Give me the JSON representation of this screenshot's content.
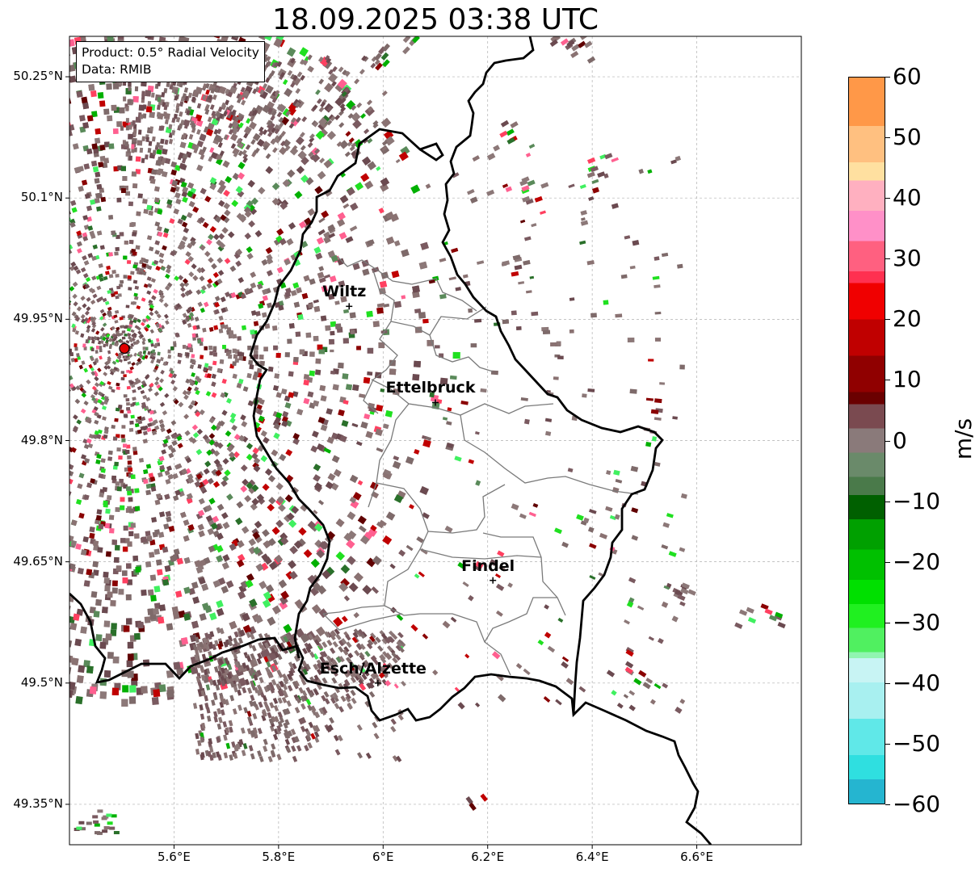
{
  "title": "18.09.2025 03:38 UTC",
  "info": {
    "product": "Product: 0.5° Radial Velocity",
    "data": "Data: RMIB"
  },
  "axes": {
    "lon_range": [
      5.4,
      6.8
    ],
    "lat_range": [
      49.3,
      50.3
    ],
    "xticks": [
      {
        "value": 5.6,
        "label": "5.6°E"
      },
      {
        "value": 5.8,
        "label": "5.8°E"
      },
      {
        "value": 6.0,
        "label": "6°E"
      },
      {
        "value": 6.2,
        "label": "6.2°E"
      },
      {
        "value": 6.4,
        "label": "6.4°E"
      },
      {
        "value": 6.6,
        "label": "6.6°E"
      }
    ],
    "yticks": [
      {
        "value": 50.25,
        "label": "50.25°N"
      },
      {
        "value": 50.1,
        "label": "50.1°N"
      },
      {
        "value": 49.95,
        "label": "49.95°N"
      },
      {
        "value": 49.8,
        "label": "49.8°N"
      },
      {
        "value": 49.65,
        "label": "49.65°N"
      },
      {
        "value": 49.5,
        "label": "49.5°N"
      },
      {
        "value": 49.35,
        "label": "49.35°N"
      }
    ],
    "grid": true
  },
  "cities": [
    {
      "name": "Wiltz",
      "lon": 5.935,
      "lat": 49.966
    },
    {
      "name": "Ettelbruck",
      "lon": 6.1,
      "lat": 49.847
    },
    {
      "name": "Findel",
      "lon": 6.21,
      "lat": 49.627
    },
    {
      "name": "Esch/Alzette",
      "lon": 5.99,
      "lat": 49.5
    }
  ],
  "radar_site": {
    "lon": 5.505,
    "lat": 49.914,
    "color": "#e00000"
  },
  "colorbar": {
    "label": "m/s",
    "range": [
      -60,
      60
    ],
    "ticks": [
      {
        "value": 60,
        "label": "60"
      },
      {
        "value": 50,
        "label": "50"
      },
      {
        "value": 40,
        "label": "40"
      },
      {
        "value": 30,
        "label": "30"
      },
      {
        "value": 20,
        "label": "20"
      },
      {
        "value": 10,
        "label": "10"
      },
      {
        "value": 0,
        "label": "0"
      },
      {
        "value": -10,
        "label": "−10"
      },
      {
        "value": -20,
        "label": "−20"
      },
      {
        "value": -30,
        "label": "−30"
      },
      {
        "value": -40,
        "label": "−40"
      },
      {
        "value": -50,
        "label": "−50"
      },
      {
        "value": -60,
        "label": "−60"
      }
    ],
    "stops": [
      {
        "value": -60,
        "color": "#1f7fc4"
      },
      {
        "value": -56,
        "color": "#25b5d0"
      },
      {
        "value": -52,
        "color": "#2fdfe0"
      },
      {
        "value": -46,
        "color": "#60e8e8"
      },
      {
        "value": -40,
        "color": "#a8f0f0"
      },
      {
        "value": -36,
        "color": "#c8f4f4"
      },
      {
        "value": -35,
        "color": "#90f5b0"
      },
      {
        "value": -31,
        "color": "#50f060"
      },
      {
        "value": -27,
        "color": "#20f020"
      },
      {
        "value": -23,
        "color": "#00e000"
      },
      {
        "value": -18,
        "color": "#00c000"
      },
      {
        "value": -13,
        "color": "#00a000"
      },
      {
        "value": -9,
        "color": "#006000"
      },
      {
        "value": -6,
        "color": "#4a7a4a"
      },
      {
        "value": -2,
        "color": "#6a8a6a"
      },
      {
        "value": 2,
        "color": "#8a7a7a"
      },
      {
        "value": 6,
        "color": "#7a4a50"
      },
      {
        "value": 8,
        "color": "#6a0000"
      },
      {
        "value": 14,
        "color": "#900000"
      },
      {
        "value": 20,
        "color": "#c00000"
      },
      {
        "value": 26,
        "color": "#f00000"
      },
      {
        "value": 28,
        "color": "#ff3050"
      },
      {
        "value": 33,
        "color": "#ff6080"
      },
      {
        "value": 38,
        "color": "#ff90c8"
      },
      {
        "value": 43,
        "color": "#ffb0c0"
      },
      {
        "value": 46,
        "color": "#ffe0a0"
      },
      {
        "value": 52,
        "color": "#ffc080"
      },
      {
        "value": 60,
        "color": "#ff9848"
      }
    ]
  },
  "velocity_palette": {
    "near_zero": [
      "#8a7272",
      "#7e6a6a",
      "#8c7878",
      "#7a5a60",
      "#6b4a50"
    ],
    "inbound": [
      "#00b000",
      "#20e020",
      "#40f060",
      "#5a8a5a",
      "#2a702a"
    ],
    "outbound": [
      "#8a0000",
      "#c00000",
      "#ff4060",
      "#ff6090",
      "#600000"
    ]
  }
}
